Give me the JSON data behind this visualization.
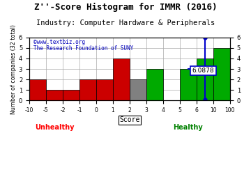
{
  "title": "Z''-Score Histogram for IMMR (2016)",
  "subtitle": "Industry: Computer Hardware & Peripherals",
  "watermark1": "©www.textbiz.org",
  "watermark2": "The Research Foundation of SUNY",
  "xlabel": "Score",
  "ylabel": "Number of companies (32 total)",
  "unhealthy_label": "Unhealthy",
  "healthy_label": "Healthy",
  "bin_edges": [
    -10,
    -5,
    -2,
    -1,
    0,
    1,
    2,
    3,
    4,
    5,
    6,
    10,
    100
  ],
  "bar_heights": [
    2,
    1,
    1,
    2,
    2,
    4,
    2,
    3,
    0,
    3,
    4,
    5
  ],
  "bar_colors": [
    "#cc0000",
    "#cc0000",
    "#cc0000",
    "#cc0000",
    "#cc0000",
    "#cc0000",
    "#808080",
    "#00aa00",
    "#00aa00",
    "#00aa00",
    "#00aa00",
    "#00aa00"
  ],
  "ylim": [
    0,
    6
  ],
  "marker_label": "6.0878",
  "marker_color": "#0000cc",
  "background_color": "#ffffff",
  "grid_color": "#aaaaaa",
  "title_fontsize": 9,
  "subtitle_fontsize": 7.5,
  "tick_labels": [
    "-10",
    "-5",
    "-2",
    "-1",
    "0",
    "1",
    "2",
    "3",
    "4",
    "5",
    "6",
    "10",
    "100"
  ],
  "num_bins": 12
}
